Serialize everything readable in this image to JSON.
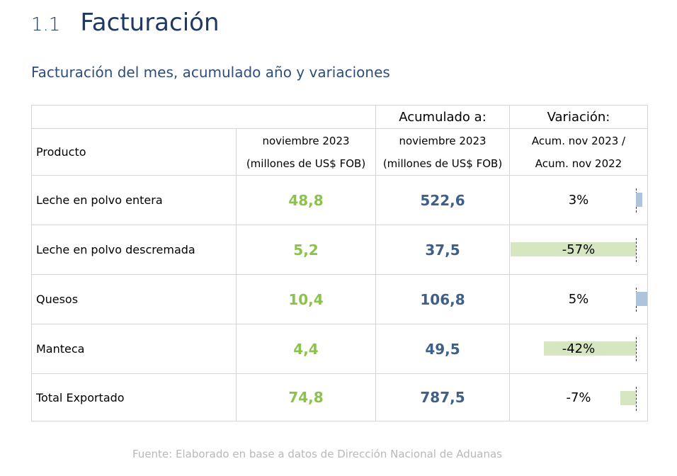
{
  "heading": {
    "number": "1.1",
    "title": "Facturación"
  },
  "subtitle": "Facturación del mes, acumulado año y variaciones",
  "table": {
    "header": {
      "product": "Producto",
      "month_l1": "noviembre 2023",
      "month_l2": "(millones de US$ FOB)",
      "acum_top": "Acumulado a:",
      "acum_l1": "noviembre 2023",
      "acum_l2": "(millones de US$ FOB)",
      "var_top": "Variación:",
      "var_l1": "Acum. nov 2023 /",
      "var_l2": "Acum. nov 2022"
    },
    "rows": [
      {
        "product": "Leche en polvo entera",
        "month": "48,8",
        "acum": "522,6",
        "variation": "3%",
        "variation_pct": 3
      },
      {
        "product": "Leche en polvo descremada",
        "month": "5,2",
        "acum": "37,5",
        "variation": "-57%",
        "variation_pct": -57
      },
      {
        "product": "Quesos",
        "month": "10,4",
        "acum": "106,8",
        "variation": "5%",
        "variation_pct": 5
      },
      {
        "product": "Manteca",
        "month": "4,4",
        "acum": "49,5",
        "variation": "-42%",
        "variation_pct": -42
      },
      {
        "product": "Total Exportado",
        "month": "74,8",
        "acum": "787,5",
        "variation": "-7%",
        "variation_pct": -7
      }
    ]
  },
  "colors": {
    "month_value": "#8bc34a",
    "acum_value": "#3e5f8a",
    "negative_bar": "#d5e6c1",
    "positive_bar": "#aec3dc",
    "heading": "#1f3864"
  },
  "source": "Fuente: Elaborado en base a datos de Dirección Nacional de Aduanas"
}
